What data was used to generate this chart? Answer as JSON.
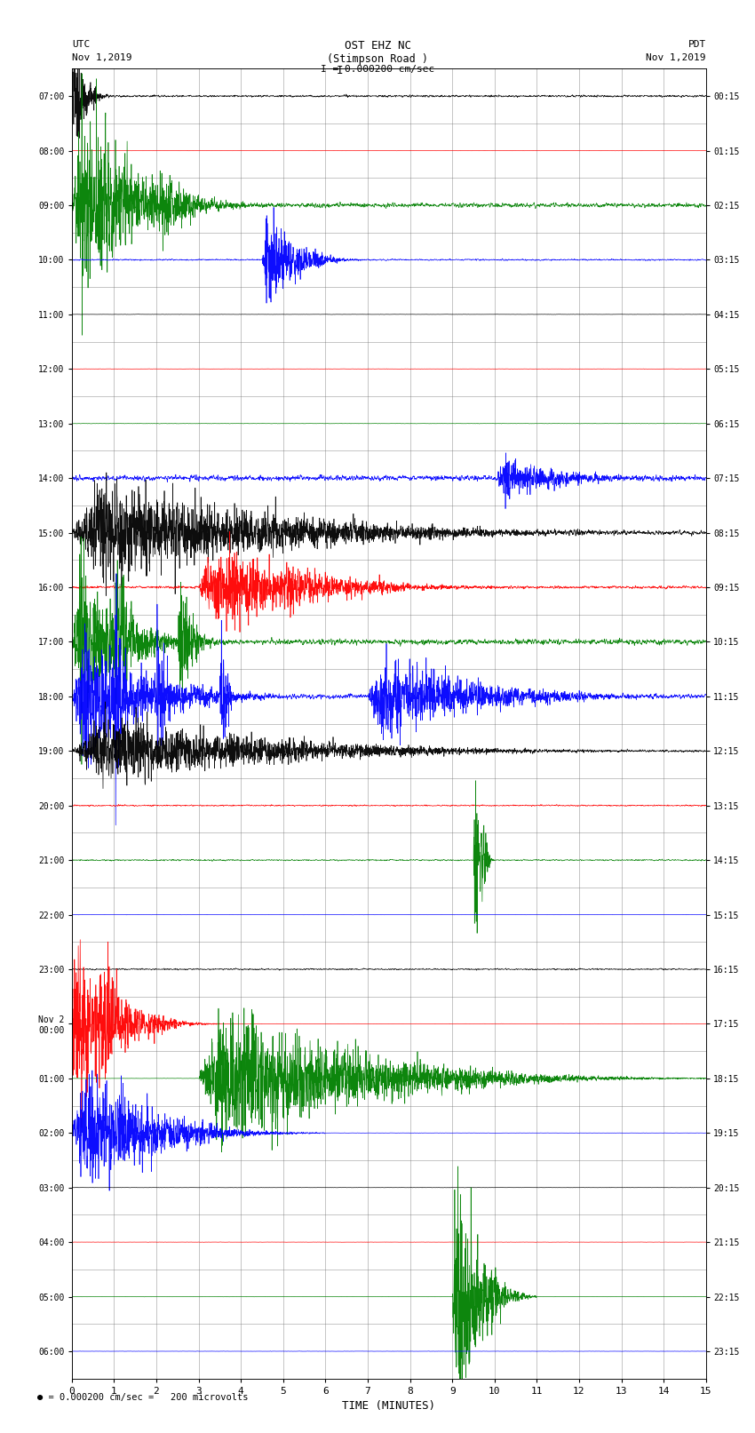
{
  "title_line1": "OST EHZ NC",
  "title_line2": "(Stimpson Road )",
  "scale_text": "I = 0.000200 cm/sec",
  "left_label_top": "UTC",
  "left_label_date": "Nov 1,2019",
  "right_label_top": "PDT",
  "right_label_date": "Nov 1,2019",
  "bottom_label": "TIME (MINUTES)",
  "footer_text": "= 0.000200 cm/sec =   200 microvolts",
  "utc_times": [
    "07:00",
    "08:00",
    "09:00",
    "10:00",
    "11:00",
    "12:00",
    "13:00",
    "14:00",
    "15:00",
    "16:00",
    "17:00",
    "18:00",
    "19:00",
    "20:00",
    "21:00",
    "22:00",
    "23:00",
    "Nov 2\n00:00",
    "01:00",
    "02:00",
    "03:00",
    "04:00",
    "05:00",
    "06:00"
  ],
  "pdt_times": [
    "00:15",
    "01:15",
    "02:15",
    "03:15",
    "04:15",
    "05:15",
    "06:15",
    "07:15",
    "08:15",
    "09:15",
    "10:15",
    "11:15",
    "12:15",
    "13:15",
    "14:15",
    "15:15",
    "16:15",
    "17:15",
    "18:15",
    "19:15",
    "20:15",
    "21:15",
    "22:15",
    "23:15"
  ],
  "n_rows": 24,
  "n_minutes": 15,
  "bg_color": "#ffffff",
  "grid_color": "#777777",
  "seed": 12345,
  "row_colors": [
    "black",
    "red",
    "green",
    "blue",
    "black",
    "red",
    "green",
    "blue",
    "black",
    "red",
    "green",
    "blue",
    "black",
    "red",
    "green",
    "blue",
    "black",
    "red",
    "green",
    "blue",
    "black",
    "red",
    "green",
    "blue"
  ],
  "noise_levels": [
    0.12,
    0.015,
    0.25,
    0.08,
    0.015,
    0.015,
    0.02,
    0.3,
    0.25,
    0.15,
    0.3,
    0.25,
    0.12,
    0.08,
    0.08,
    0.015,
    0.08,
    0.015,
    0.015,
    0.015,
    0.015,
    0.015,
    0.015,
    0.015
  ],
  "amplitude_scale": 0.38
}
